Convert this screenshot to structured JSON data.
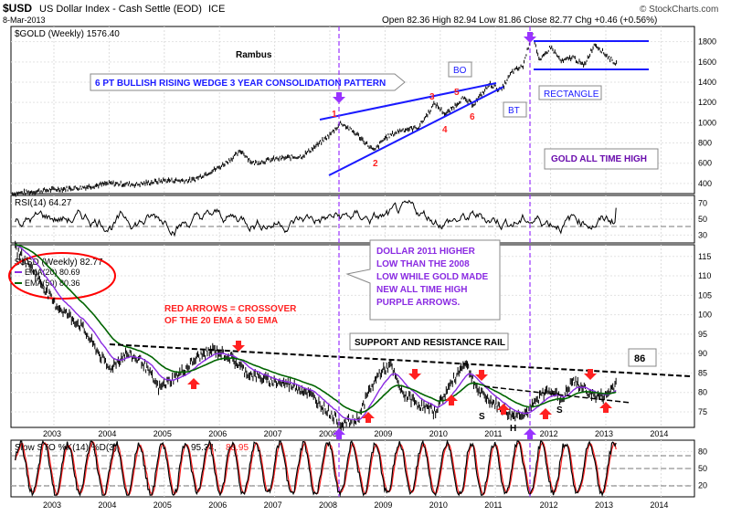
{
  "header": {
    "symbol": "$USD",
    "name": "US Dollar Index - Cash Settle (EOD)",
    "exchange": "ICE",
    "date": "8-Mar-2013",
    "ohlc": "Open 82.36  High 82.94  Low 81.86  Close 82.77  Chg +0.46 (+0.56%)",
    "brand": "© StockCharts.com"
  },
  "colors": {
    "blue": "#1a1aff",
    "purple": "#8a2be2",
    "red": "#ff2020",
    "green": "#006400",
    "arrow_purple": "#9933ff"
  },
  "chart_data": [
    {
      "type": "line",
      "panel": "gold",
      "title": "$GOLD (Weekly) 1576.40",
      "author": "Rambus",
      "y_ticks": [
        "1800",
        "1600",
        "1400",
        "1200",
        "1000",
        "800",
        "600",
        "400"
      ],
      "ylim": [
        300,
        1950
      ],
      "series": [
        {
          "name": "$GOLD",
          "points": [
            [
              2002.25,
              300
            ],
            [
              2003.0,
              340
            ],
            [
              2003.5,
              360
            ],
            [
              2004.0,
              400
            ],
            [
              2004.5,
              390
            ],
            [
              2005.0,
              430
            ],
            [
              2005.5,
              430
            ],
            [
              2006.0,
              560
            ],
            [
              2006.4,
              720
            ],
            [
              2006.6,
              600
            ],
            [
              2007.0,
              640
            ],
            [
              2007.5,
              670
            ],
            [
              2007.8,
              790
            ],
            [
              2008.0,
              880
            ],
            [
              2008.2,
              1000
            ],
            [
              2008.5,
              880
            ],
            [
              2008.8,
              720
            ],
            [
              2009.0,
              850
            ],
            [
              2009.3,
              930
            ],
            [
              2009.6,
              950
            ],
            [
              2009.9,
              1190
            ],
            [
              2010.1,
              1080
            ],
            [
              2010.4,
              1240
            ],
            [
              2010.6,
              1180
            ],
            [
              2010.9,
              1380
            ],
            [
              2011.1,
              1320
            ],
            [
              2011.3,
              1500
            ],
            [
              2011.5,
              1560
            ],
            [
              2011.67,
              1900
            ],
            [
              2011.8,
              1600
            ],
            [
              2012.0,
              1750
            ],
            [
              2012.2,
              1600
            ],
            [
              2012.4,
              1650
            ],
            [
              2012.6,
              1560
            ],
            [
              2012.8,
              1780
            ],
            [
              2013.0,
              1670
            ],
            [
              2013.2,
              1576
            ]
          ]
        }
      ],
      "annotations": {
        "wedge": "6 PT BULLISH RISING WEDGE 3 YEAR CONSOLIDATION PATTERN",
        "bo": "BO",
        "bt": "BT",
        "rectangle": "RECTANGLE",
        "ath": "GOLD ALL TIME HIGH",
        "points": [
          "1",
          "2",
          "3",
          "4",
          "5",
          "6"
        ]
      }
    },
    {
      "type": "line",
      "panel": "rsi",
      "title": "RSI(14) 64.27",
      "y_ticks": [
        "70",
        "50",
        "30"
      ],
      "ylim": [
        20,
        80
      ]
    },
    {
      "type": "line",
      "panel": "usd",
      "title": "$USD (Weekly) 82.77",
      "legend": [
        "EMA(20) 80.69",
        "EMA(50) 80.36"
      ],
      "y_ticks": [
        "115",
        "110",
        "105",
        "100",
        "95",
        "90",
        "85",
        "80",
        "75"
      ],
      "ylim": [
        71,
        118
      ],
      "series": [
        {
          "name": "$USD",
          "points": [
            [
              2002.3,
              117
            ],
            [
              2002.6,
              112
            ],
            [
              2003.0,
              103
            ],
            [
              2003.5,
              97
            ],
            [
              2004.0,
              86
            ],
            [
              2004.3,
              90
            ],
            [
              2004.6,
              88
            ],
            [
              2004.9,
              81
            ],
            [
              2005.3,
              85
            ],
            [
              2005.6,
              89
            ],
            [
              2005.9,
              91
            ],
            [
              2006.2,
              89
            ],
            [
              2006.5,
              85
            ],
            [
              2006.9,
              83
            ],
            [
              2007.3,
              82
            ],
            [
              2007.6,
              80
            ],
            [
              2007.9,
              76
            ],
            [
              2008.2,
              72
            ],
            [
              2008.5,
              73
            ],
            [
              2008.7,
              80
            ],
            [
              2008.9,
              85
            ],
            [
              2009.1,
              87
            ],
            [
              2009.3,
              80
            ],
            [
              2009.6,
              77
            ],
            [
              2009.9,
              75
            ],
            [
              2010.1,
              80
            ],
            [
              2010.45,
              88
            ],
            [
              2010.7,
              80
            ],
            [
              2010.9,
              78
            ],
            [
              2011.1,
              76
            ],
            [
              2011.3,
              74
            ],
            [
              2011.6,
              75
            ],
            [
              2011.8,
              79
            ],
            [
              2012.0,
              81
            ],
            [
              2012.2,
              78
            ],
            [
              2012.4,
              83
            ],
            [
              2012.6,
              81
            ],
            [
              2012.8,
              79
            ],
            [
              2013.0,
              79
            ],
            [
              2013.2,
              82.77
            ]
          ]
        }
      ],
      "annotations": {
        "crossover": [
          "RED ARROWS = CROSSOVER",
          "OF THE 20 EMA & 50 EMA"
        ],
        "rail": "SUPPORT AND RESISTANCE RAIL",
        "dollar_box": [
          "DOLLAR 2011 HIGHER",
          "LOW THAN THE 2008",
          "LOW WHILE GOLD MADE",
          "NEW ALL TIME HIGH",
          "PURPLE ARROWS."
        ],
        "rail_value": "86",
        "hs": [
          "S",
          "H",
          "S"
        ]
      }
    },
    {
      "type": "line",
      "panel": "sto",
      "title": "Slow STO %K(14) %D(3)",
      "value_k": "95.34,",
      "value_d": "83.95",
      "y_ticks": [
        "80",
        "50",
        "20"
      ],
      "ylim": [
        0,
        100
      ]
    }
  ],
  "x_axis": {
    "years": [
      "2003",
      "2004",
      "2005",
      "2006",
      "2007",
      "2008",
      "2009",
      "2010",
      "2011",
      "2012",
      "2013",
      "2014"
    ]
  }
}
